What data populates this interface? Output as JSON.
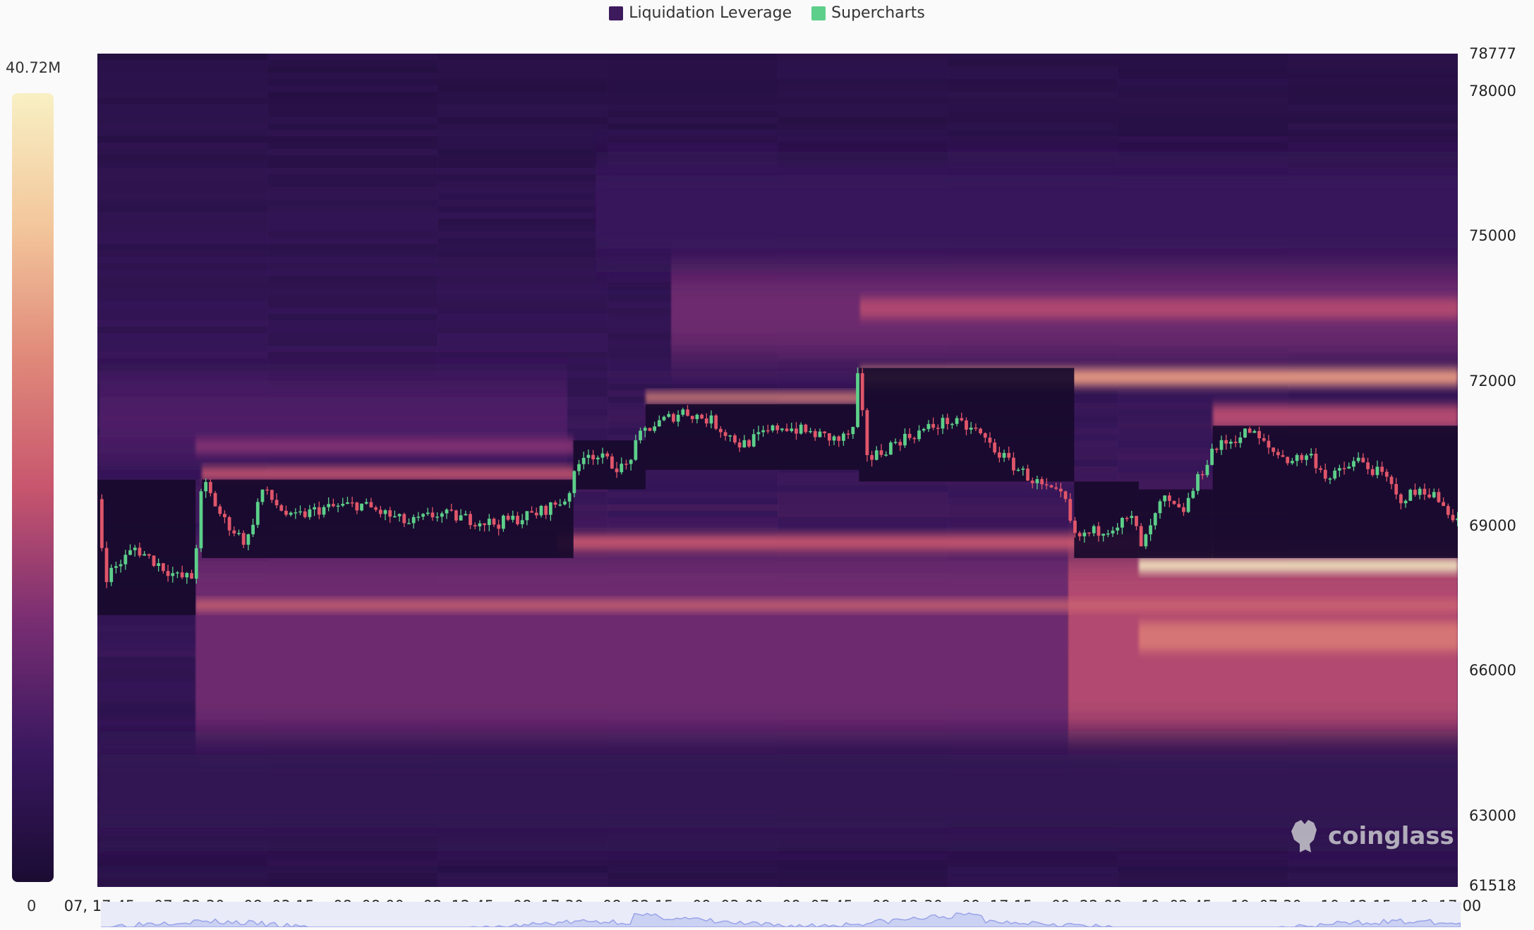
{
  "legend": [
    {
      "label": "Liquidation Leverage",
      "color": "#3d1a5c"
    },
    {
      "label": "Supercharts",
      "color": "#5dcf8a"
    }
  ],
  "colorbar": {
    "max_label": "40.72M",
    "min_label": "0",
    "stops": [
      "#1b0c33",
      "#3a1860",
      "#7a2e72",
      "#c8566e",
      "#e08a7a",
      "#f3c79c",
      "#f8f0c4"
    ]
  },
  "watermark": "coinglass",
  "chart_data": {
    "type": "heatmap",
    "title": "",
    "ylim": [
      61518,
      78777
    ],
    "y_ticks": [
      "78777",
      "78000",
      "75000",
      "72000",
      "69000",
      "66000",
      "63000",
      "61518"
    ],
    "x_ticks": [
      "07, 17:45",
      "07, 22:30",
      "08, 03:15",
      "08, 08:00",
      "08, 12:45",
      "08, 17:30",
      "08, 22:15",
      "09, 03:00",
      "09, 07:45",
      "09, 12:30",
      "09, 17:15",
      "09, 22:00",
      "10, 02:45",
      "10, 07:30",
      "10, 12:15",
      "10, 17:00"
    ],
    "x_range": [
      "07 17:38",
      "10 17:45"
    ],
    "price_path": [
      [
        "07 17:45",
        69550
      ],
      [
        "07 18:10",
        67927
      ],
      [
        "07 19:45",
        68536
      ],
      [
        "07 22:03",
        67927
      ],
      [
        "07 22:50",
        67927
      ],
      [
        "07 23:20",
        69955
      ],
      [
        "08 00:23",
        69144
      ],
      [
        "08 01:40",
        68637
      ],
      [
        "08 02:27",
        69752
      ],
      [
        "08 04:00",
        69144
      ],
      [
        "08 05:33",
        69347
      ],
      [
        "08 07:39",
        69448
      ],
      [
        "08 10:15",
        69043
      ],
      [
        "08 11:45",
        69246
      ],
      [
        "08 14:53",
        69043
      ],
      [
        "08 16:57",
        69246
      ],
      [
        "08 18:33",
        69550
      ],
      [
        "08 19:33",
        70564
      ],
      [
        "08 21:39",
        70158
      ],
      [
        "08 22:39",
        70969
      ],
      [
        "09 00:45",
        71375
      ],
      [
        "09 02:15",
        71172
      ],
      [
        "09 03:51",
        70665
      ],
      [
        "09 05:57",
        71071
      ],
      [
        "09 09:03",
        70767
      ],
      [
        "09 09:51",
        71000
      ],
      [
        "09 09:57",
        72186
      ],
      [
        "09 10:33",
        70361
      ],
      [
        "09 12:09",
        70767
      ],
      [
        "09 14:45",
        71172
      ],
      [
        "09 16:15",
        70969
      ],
      [
        "09 17:51",
        70361
      ],
      [
        "09 19:57",
        69752
      ],
      [
        "09 20:57",
        69550
      ],
      [
        "09 21:27",
        68739
      ],
      [
        "09 23:03",
        68941
      ],
      [
        "10 00:33",
        69144
      ],
      [
        "10 01:03",
        68536
      ],
      [
        "10 02:09",
        69550
      ],
      [
        "10 03:09",
        69246
      ],
      [
        "10 04:45",
        70564
      ],
      [
        "10 06:45",
        70969
      ],
      [
        "10 07:51",
        70564
      ],
      [
        "10 08:51",
        70361
      ],
      [
        "10 09:57",
        70462
      ],
      [
        "10 10:57",
        69955
      ],
      [
        "10 12:27",
        70361
      ],
      [
        "10 14:03",
        69955
      ],
      [
        "10 14:33",
        69550
      ],
      [
        "10 16:09",
        69752
      ],
      [
        "10 17:39",
        69144
      ]
    ],
    "liquidation_bands": [
      {
        "low": 64500,
        "high": 68500,
        "start": "07 22:50",
        "end": "09 21:00",
        "intensity": 0.3
      },
      {
        "low": 64500,
        "high": 68500,
        "start": "09 21:00",
        "end": "10 17:45",
        "intensity": 0.45
      },
      {
        "low": 72500,
        "high": 74500,
        "start": "09 00:00",
        "end": "10 17:45",
        "intensity": 0.3
      },
      {
        "low": 70500,
        "high": 72000,
        "start": "07 17:45",
        "end": "08 18:30",
        "intensity": 0.22
      },
      {
        "low": 62500,
        "high": 64500,
        "start": "07 17:45",
        "end": "10 17:45",
        "intensity": 0.12
      },
      {
        "low": 74500,
        "high": 76500,
        "start": "08 20:00",
        "end": "10 17:45",
        "intensity": 0.15
      },
      {
        "low": 71900,
        "high": 72250,
        "start": "09 10:00",
        "end": "10 17:45",
        "intensity": 0.7
      },
      {
        "low": 71550,
        "high": 71750,
        "start": "08 22:39",
        "end": "09 09:57",
        "intensity": 0.65
      },
      {
        "low": 69950,
        "high": 70200,
        "start": "07 23:10",
        "end": "08 18:50",
        "intensity": 0.5
      },
      {
        "low": 68500,
        "high": 68800,
        "start": "08 18:00",
        "end": "10 00:45",
        "intensity": 0.5
      },
      {
        "low": 67250,
        "high": 67450,
        "start": "07 22:50",
        "end": "10 17:45",
        "intensity": 0.55
      },
      {
        "low": 66400,
        "high": 67000,
        "start": "10 00:45",
        "end": "10 17:45",
        "intensity": 0.6
      },
      {
        "low": 73300,
        "high": 73700,
        "start": "09 10:00",
        "end": "10 17:45",
        "intensity": 0.45
      },
      {
        "low": 70500,
        "high": 70800,
        "start": "07 22:50",
        "end": "08 18:50",
        "intensity": 0.35
      },
      {
        "low": 71000,
        "high": 71500,
        "start": "10 04:40",
        "end": "10 17:45",
        "intensity": 0.45
      },
      {
        "low": 68050,
        "high": 68300,
        "start": "10 00:45",
        "end": "10 17:45",
        "intensity": 1.0
      }
    ],
    "cleared_zones": [
      {
        "start": "07 17:38",
        "end": "07 22:50",
        "low": 67150,
        "high": 69955
      },
      {
        "start": "07 23:10",
        "end": "08 18:50",
        "low": 68330,
        "high": 69955
      },
      {
        "start": "08 18:50",
        "end": "08 22:39",
        "low": 69752,
        "high": 70767
      },
      {
        "start": "08 22:39",
        "end": "09 09:57",
        "low": 70158,
        "high": 71517
      },
      {
        "start": "09 09:57",
        "end": "09 21:20",
        "low": 69915,
        "high": 72267
      },
      {
        "start": "09 21:20",
        "end": "10 00:45",
        "low": 68330,
        "high": 69915
      },
      {
        "start": "10 00:45",
        "end": "10 04:40",
        "low": 68330,
        "high": 69752
      },
      {
        "start": "10 04:40",
        "end": "10 17:45",
        "low": 68330,
        "high": 71071
      }
    ],
    "candle_colors": {
      "up": "#5dcf8a",
      "down": "#e0566a"
    }
  }
}
